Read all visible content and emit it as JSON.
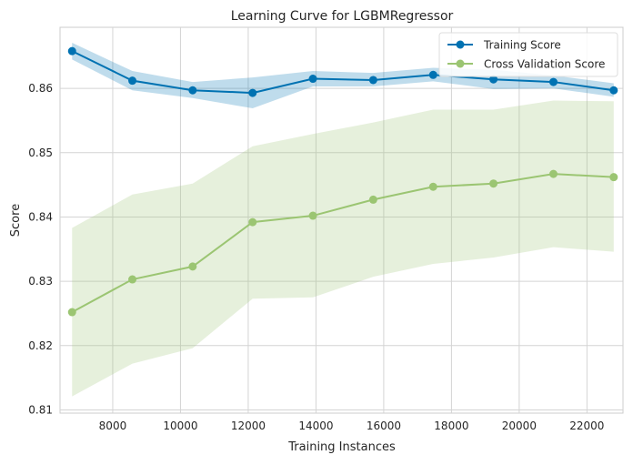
{
  "chart_data": {
    "type": "line",
    "title": "Learning Curve for LGBMRegressor",
    "xlabel": "Training Instances",
    "ylabel": "Score",
    "xlim": [
      6444,
      23064
    ],
    "ylim": [
      0.8095,
      0.8695
    ],
    "xticks": [
      8000,
      10000,
      12000,
      14000,
      16000,
      18000,
      20000,
      22000
    ],
    "xtick_labels": [
      "8000",
      "10000",
      "12000",
      "14000",
      "16000",
      "18000",
      "20000",
      "22000"
    ],
    "yticks": [
      0.81,
      0.82,
      0.83,
      0.84,
      0.85,
      0.86
    ],
    "ytick_labels": [
      "0.81",
      "0.82",
      "0.83",
      "0.84",
      "0.85",
      "0.86"
    ],
    "grid": true,
    "legend_position": "top-right",
    "x": [
      6800,
      8580,
      10360,
      12130,
      13910,
      15690,
      17460,
      19240,
      21010,
      22790
    ],
    "series": [
      {
        "name": "Training Score",
        "color": "#0072B2",
        "band_color": "#0072B2",
        "values": [
          0.8658,
          0.8612,
          0.8597,
          0.8593,
          0.8615,
          0.8613,
          0.8621,
          0.8614,
          0.861,
          0.8597
        ],
        "lower": [
          0.8645,
          0.8597,
          0.8585,
          0.8569,
          0.8603,
          0.8603,
          0.8611,
          0.8599,
          0.86,
          0.8587
        ],
        "upper": [
          0.8671,
          0.8627,
          0.861,
          0.8617,
          0.8627,
          0.8624,
          0.8632,
          0.8629,
          0.862,
          0.8608
        ]
      },
      {
        "name": "Cross Validation Score",
        "color": "#9BC572",
        "band_color": "#9BC572",
        "values": [
          0.8252,
          0.8303,
          0.8323,
          0.8392,
          0.8402,
          0.8427,
          0.8447,
          0.8452,
          0.8467,
          0.8462
        ],
        "lower": [
          0.8121,
          0.8172,
          0.8196,
          0.8273,
          0.8275,
          0.8307,
          0.8327,
          0.8337,
          0.8353,
          0.8346
        ],
        "upper": [
          0.8383,
          0.8435,
          0.8452,
          0.851,
          0.8529,
          0.8547,
          0.8567,
          0.8567,
          0.8581,
          0.858
        ]
      }
    ]
  }
}
